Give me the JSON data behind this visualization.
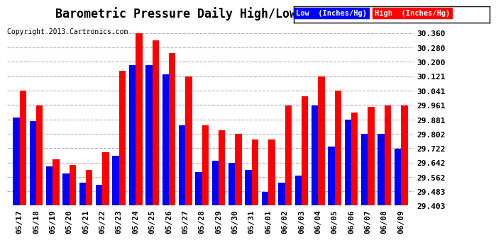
{
  "title": "Barometric Pressure Daily High/Low 20130610",
  "copyright": "Copyright 2013 Cartronics.com",
  "legend_low": "Low  (Inches/Hg)",
  "legend_high": "High  (Inches/Hg)",
  "dates": [
    "05/17",
    "05/18",
    "05/19",
    "05/20",
    "05/21",
    "05/22",
    "05/23",
    "05/24",
    "05/25",
    "05/26",
    "05/27",
    "05/28",
    "05/29",
    "05/30",
    "05/31",
    "06/01",
    "06/02",
    "06/03",
    "06/04",
    "06/05",
    "06/06",
    "06/07",
    "06/08",
    "06/09"
  ],
  "low": [
    29.89,
    29.87,
    29.62,
    29.58,
    29.53,
    29.52,
    29.68,
    30.18,
    30.18,
    30.13,
    29.85,
    29.59,
    29.65,
    29.64,
    29.6,
    29.48,
    29.53,
    29.57,
    29.96,
    29.73,
    29.88,
    29.8,
    29.8,
    29.72
  ],
  "high": [
    30.04,
    29.96,
    29.66,
    29.63,
    29.6,
    29.7,
    30.15,
    30.36,
    30.32,
    30.25,
    30.12,
    29.85,
    29.82,
    29.8,
    29.77,
    29.77,
    29.96,
    30.01,
    30.12,
    30.04,
    29.92,
    29.95,
    29.96,
    29.96
  ],
  "ylim_min": 29.403,
  "ylim_max": 30.36,
  "yticks": [
    29.403,
    29.483,
    29.562,
    29.642,
    29.722,
    29.802,
    29.881,
    29.961,
    30.041,
    30.121,
    30.2,
    30.28,
    30.36
  ],
  "color_low": "#0000ff",
  "color_high": "#ff0000",
  "background_color": "#ffffff",
  "grid_color": "#b0b0b0",
  "title_fontsize": 12,
  "tick_fontsize": 8,
  "bar_width": 0.4
}
